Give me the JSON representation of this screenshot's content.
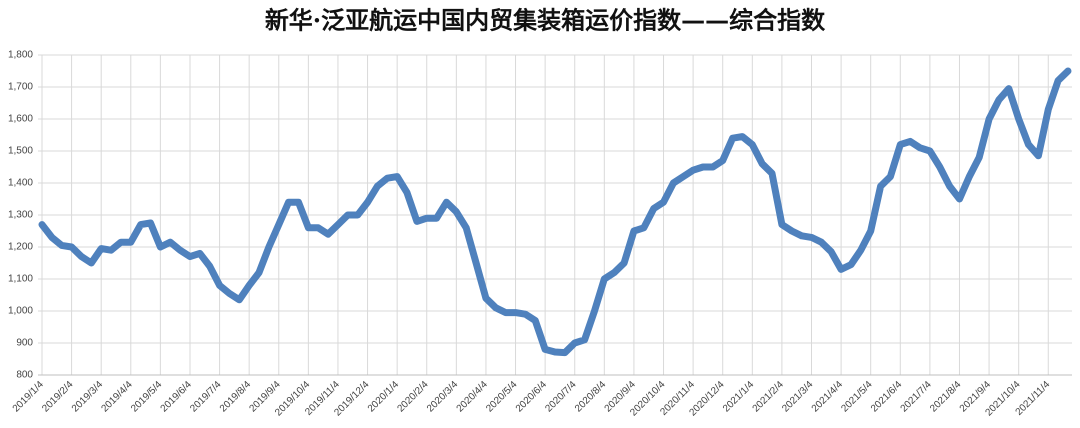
{
  "chart_data": {
    "type": "line",
    "title": "新华·泛亚航运中国内贸集装箱运价指数——综合指数",
    "categories": [
      "2019/1/4",
      null,
      null,
      "2019/2/4",
      null,
      null,
      "2019/3/4",
      null,
      null,
      "2019/4/4",
      null,
      null,
      "2019/5/4",
      null,
      null,
      "2019/6/4",
      null,
      null,
      "2019/7/4",
      null,
      null,
      "2019/8/4",
      null,
      null,
      "2019/9/4",
      null,
      null,
      "2019/10/4",
      null,
      null,
      "2019/11/4",
      null,
      null,
      "2019/12/4",
      null,
      null,
      "2020/1/4",
      null,
      null,
      "2020/2/4",
      null,
      null,
      "2020/3/4",
      null,
      null,
      "2020/4/4",
      null,
      null,
      "2020/5/4",
      null,
      null,
      "2020/6/4",
      null,
      null,
      "2020/7/4",
      null,
      null,
      "2020/8/4",
      null,
      null,
      "2020/9/4",
      null,
      null,
      "2020/10/4",
      null,
      null,
      "2020/11/4",
      null,
      null,
      "2020/12/4",
      null,
      null,
      "2021/1/4",
      null,
      null,
      "2021/2/4",
      null,
      null,
      "2021/3/4",
      null,
      null,
      "2021/4/4",
      null,
      null,
      "2021/5/4",
      null,
      null,
      "2021/6/4",
      null,
      null,
      "2021/7/4",
      null,
      null,
      "2021/8/4",
      null,
      null,
      "2021/9/4",
      null,
      null,
      "2021/10/4",
      null,
      null,
      "2021/11/4",
      null,
      null
    ],
    "series": [
      {
        "name": "综合指数",
        "color": "#4f81bd",
        "values": [
          1270,
          1230,
          1205,
          1200,
          1170,
          1150,
          1195,
          1190,
          1215,
          1215,
          1270,
          1275,
          1200,
          1215,
          1190,
          1170,
          1180,
          1140,
          1080,
          1055,
          1035,
          1080,
          1120,
          1200,
          1270,
          1340,
          1340,
          1260,
          1260,
          1240,
          1270,
          1300,
          1300,
          1340,
          1390,
          1415,
          1420,
          1370,
          1280,
          1290,
          1290,
          1340,
          1310,
          1260,
          1150,
          1040,
          1010,
          995,
          995,
          990,
          970,
          880,
          872,
          870,
          900,
          910,
          1000,
          1100,
          1120,
          1150,
          1250,
          1260,
          1320,
          1340,
          1400,
          1420,
          1440,
          1450,
          1450,
          1470,
          1540,
          1545,
          1520,
          1460,
          1430,
          1270,
          1250,
          1235,
          1230,
          1215,
          1185,
          1130,
          1145,
          1190,
          1250,
          1390,
          1420,
          1520,
          1530,
          1510,
          1500,
          1450,
          1390,
          1350,
          1420,
          1480,
          1600,
          1660,
          1695,
          1600,
          1520,
          1485,
          1630,
          1720,
          1750
        ]
      }
    ],
    "ylim": [
      800,
      1800
    ],
    "yticks": [
      {
        "value": 800,
        "label": "800"
      },
      {
        "value": 900,
        "label": "900"
      },
      {
        "value": 1000,
        "label": "1,000"
      },
      {
        "value": 1100,
        "label": "1,100"
      },
      {
        "value": 1200,
        "label": "1,200"
      },
      {
        "value": 1300,
        "label": "1,300"
      },
      {
        "value": 1400,
        "label": "1,400"
      },
      {
        "value": 1500,
        "label": "1,500"
      },
      {
        "value": 1600,
        "label": "1,600"
      },
      {
        "value": 1700,
        "label": "1,700"
      },
      {
        "value": 1800,
        "label": "1,800"
      }
    ],
    "grid": true
  }
}
